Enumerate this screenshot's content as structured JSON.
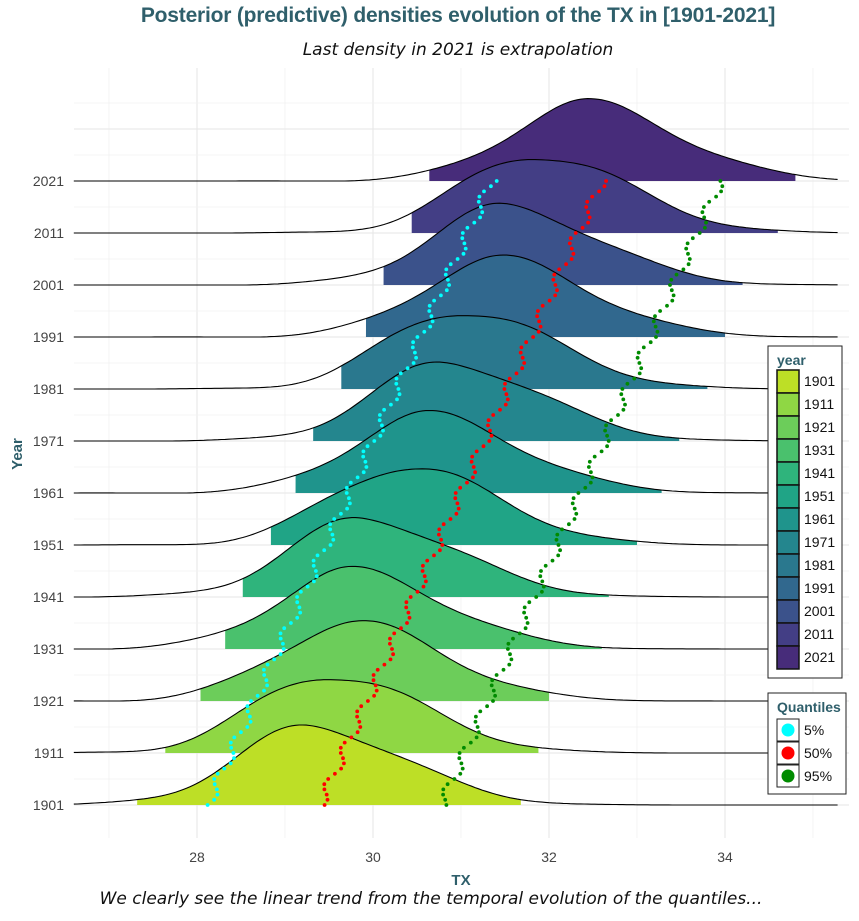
{
  "chart_data": {
    "type": "ridgeline",
    "title": "Posterior (predictive) densities evolution of the TX  in [1901-2021]",
    "subtitle": "Last density in 2021 is extrapolation",
    "caption": "We clearly see the linear trend from the temporal evolution of the quantiles...",
    "xlabel": "TX",
    "ylabel": "Year",
    "xlim": [
      26.6,
      35.3
    ],
    "x_ticks": [
      28,
      30,
      32,
      34
    ],
    "y_ticks": [
      "1901",
      "1911",
      "1921",
      "1931",
      "1941",
      "1951",
      "1961",
      "1971",
      "1981",
      "1991",
      "2001",
      "2011",
      "2021"
    ],
    "grid": true,
    "legend_position": "right",
    "year_legend": {
      "title": "year",
      "entries": [
        {
          "label": "1901",
          "color": "#bddf26"
        },
        {
          "label": "1911",
          "color": "#8fd744"
        },
        {
          "label": "1921",
          "color": "#6ccd5a"
        },
        {
          "label": "1931",
          "color": "#4ac16d"
        },
        {
          "label": "1941",
          "color": "#2fb47c"
        },
        {
          "label": "1951",
          "color": "#20a486"
        },
        {
          "label": "1961",
          "color": "#1f948c"
        },
        {
          "label": "1971",
          "color": "#24868e"
        },
        {
          "label": "1981",
          "color": "#2a788e"
        },
        {
          "label": "1991",
          "color": "#31688e"
        },
        {
          "label": "2001",
          "color": "#3b528b"
        },
        {
          "label": "2011",
          "color": "#433e85"
        },
        {
          "label": "2021",
          "color": "#472c7a"
        }
      ]
    },
    "quantiles_legend": {
      "title": "Quantiles",
      "entries": [
        {
          "label": "5%",
          "color": "#00ffff"
        },
        {
          "label": "50%",
          "color": "#ff0000"
        },
        {
          "label": "95%",
          "color": "#008b00"
        }
      ]
    },
    "series": [
      {
        "year": "1901",
        "mode": 29.3,
        "fill_range": [
          27.3,
          31.7
        ],
        "tail_range": [
          26.6,
          33.2
        ]
      },
      {
        "year": "1911",
        "mode": 29.5,
        "fill_range": [
          27.6,
          31.9
        ],
        "tail_range": [
          26.6,
          33.5
        ]
      },
      {
        "year": "1921",
        "mode": 29.75,
        "fill_range": [
          28.0,
          32.0
        ],
        "tail_range": [
          26.6,
          33.8
        ]
      },
      {
        "year": "1931",
        "mode": 29.75,
        "fill_range": [
          28.3,
          32.6
        ],
        "tail_range": [
          26.6,
          34.1
        ]
      },
      {
        "year": "1941",
        "mode": 29.9,
        "fill_range": [
          28.5,
          32.7
        ],
        "tail_range": [
          26.6,
          34.4
        ]
      },
      {
        "year": "1951",
        "mode": 30.35,
        "fill_range": [
          28.8,
          33.0
        ],
        "tail_range": [
          26.6,
          34.6
        ]
      },
      {
        "year": "1961",
        "mode": 30.6,
        "fill_range": [
          29.1,
          33.3
        ],
        "tail_range": [
          26.6,
          34.9
        ]
      },
      {
        "year": "1971",
        "mode": 30.85,
        "fill_range": [
          29.3,
          33.5
        ],
        "tail_range": [
          26.6,
          35.1
        ]
      },
      {
        "year": "1981",
        "mode": 31.0,
        "fill_range": [
          29.6,
          33.8
        ],
        "tail_range": [
          26.6,
          35.3
        ]
      },
      {
        "year": "1991",
        "mode": 31.4,
        "fill_range": [
          29.9,
          34.0
        ],
        "tail_range": [
          26.6,
          35.3
        ]
      },
      {
        "year": "2001",
        "mode": 31.5,
        "fill_range": [
          30.1,
          34.2
        ],
        "tail_range": [
          26.6,
          35.3
        ]
      },
      {
        "year": "2011",
        "mode": 31.85,
        "fill_range": [
          30.4,
          34.6
        ],
        "tail_range": [
          26.6,
          35.3
        ]
      },
      {
        "year": "2021",
        "mode": 32.4,
        "fill_range": [
          30.6,
          34.8
        ],
        "tail_range": [
          26.6,
          35.3
        ]
      }
    ],
    "quantile_trends": [
      {
        "name": "5%",
        "start": [
          28.12,
          1901
        ],
        "end": [
          31.35,
          2021
        ]
      },
      {
        "name": "50%",
        "start": [
          29.4,
          1901
        ],
        "end": [
          32.6,
          2021
        ]
      },
      {
        "name": "95%",
        "start": [
          30.78,
          1901
        ],
        "end": [
          33.95,
          2021
        ]
      }
    ]
  }
}
